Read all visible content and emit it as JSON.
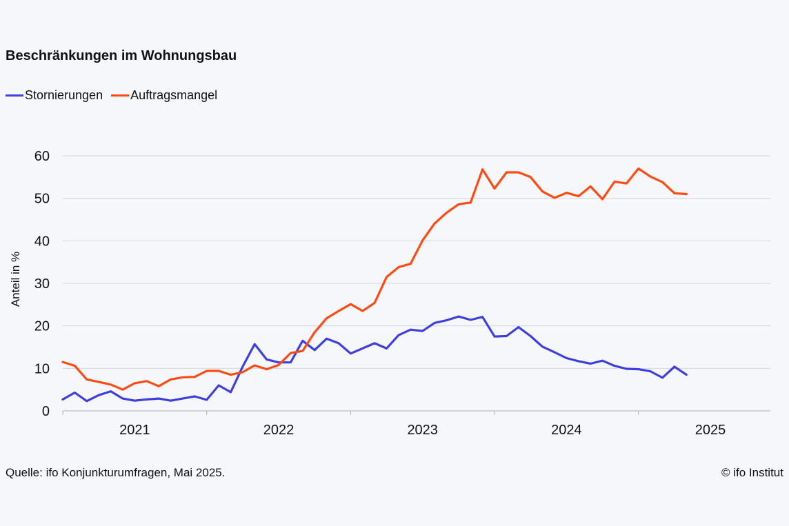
{
  "chart_data": {
    "type": "line",
    "title": "Beschränkungen im Wohnungsbau",
    "ylabel": "Anteil in %",
    "xlabel": "",
    "ylim": [
      0,
      60
    ],
    "yticks": [
      0,
      10,
      20,
      30,
      40,
      50,
      60
    ],
    "xlim": [
      "2020-07",
      "2025-06"
    ],
    "xtick_labels": [
      "2021",
      "2022",
      "2023",
      "2024",
      "2025"
    ],
    "grid": true,
    "legend_position": "top-left",
    "x": [
      "2020-07",
      "2020-08",
      "2020-09",
      "2020-10",
      "2020-11",
      "2020-12",
      "2021-01",
      "2021-02",
      "2021-03",
      "2021-04",
      "2021-05",
      "2021-06",
      "2021-07",
      "2021-08",
      "2021-09",
      "2021-10",
      "2021-11",
      "2021-12",
      "2022-01",
      "2022-02",
      "2022-03",
      "2022-04",
      "2022-05",
      "2022-06",
      "2022-07",
      "2022-08",
      "2022-09",
      "2022-10",
      "2022-11",
      "2022-12",
      "2023-01",
      "2023-02",
      "2023-03",
      "2023-04",
      "2023-05",
      "2023-06",
      "2023-07",
      "2023-08",
      "2023-09",
      "2023-10",
      "2023-11",
      "2023-12",
      "2024-01",
      "2024-02",
      "2024-03",
      "2024-04",
      "2024-05",
      "2024-06",
      "2024-07",
      "2024-08",
      "2024-09",
      "2024-10",
      "2024-11"
    ],
    "series": [
      {
        "name": "Stornierungen",
        "color": "#3f3fe0",
        "values": [
          2.7,
          4.3,
          2.3,
          3.7,
          4.6,
          2.9,
          2.4,
          2.7,
          2.9,
          2.4,
          2.9,
          3.4,
          2.6,
          6.0,
          4.4,
          10.4,
          15.7,
          12.1,
          11.4,
          11.4,
          16.5,
          14.3,
          17.0,
          15.9,
          13.5,
          14.7,
          15.9,
          14.7,
          17.8,
          19.1,
          18.8,
          20.7,
          21.3,
          22.2,
          21.4,
          22.1,
          17.5,
          17.6,
          19.7,
          17.6,
          15.1,
          13.8,
          12.4,
          11.7,
          11.1,
          11.8,
          10.6,
          9.9,
          9.8,
          9.3,
          7.8,
          10.4,
          8.5
        ]
      },
      {
        "name": "Auftragsmangel",
        "color": "#ff4b12",
        "values": [
          11.5,
          10.6,
          7.4,
          6.8,
          6.2,
          5.0,
          6.5,
          7.0,
          5.8,
          7.4,
          7.9,
          8.0,
          9.4,
          9.4,
          8.5,
          9.1,
          10.7,
          9.8,
          10.8,
          13.6,
          14.1,
          18.5,
          21.8,
          23.5,
          25.1,
          23.5,
          25.4,
          31.5,
          33.8,
          34.6,
          40.1,
          44.1,
          46.6,
          48.6,
          49.0,
          56.8,
          52.3,
          56.1,
          56.1,
          55.0,
          51.6,
          50.1,
          51.3,
          50.5,
          52.8,
          49.8,
          53.9,
          53.5,
          57.0,
          55.1,
          53.8,
          51.2,
          51.0
        ]
      }
    ]
  },
  "source_note": "Quelle: ifo Konjunkturumfragen, Mai 2025.",
  "copyright": "© ifo Institut"
}
